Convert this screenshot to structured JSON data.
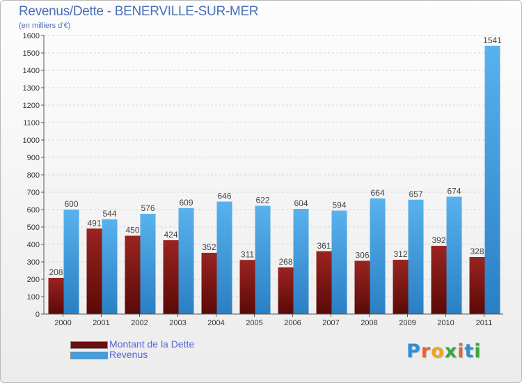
{
  "header": {
    "title": "Revenus/Dette - BENERVILLE-SUR-MER",
    "subtitle": "(en milliers d'€)"
  },
  "chart_data": {
    "type": "bar",
    "categories": [
      "2000",
      "2001",
      "2002",
      "2003",
      "2004",
      "2005",
      "2006",
      "2007",
      "2008",
      "2009",
      "2010",
      "2011"
    ],
    "series": [
      {
        "name": "Montant de la Dette",
        "color": "#7d1512",
        "values": [
          208,
          491,
          450,
          424,
          352,
          311,
          268,
          361,
          306,
          312,
          392,
          328
        ]
      },
      {
        "name": "Revenus",
        "color": "#3f9fdf",
        "values": [
          600,
          544,
          576,
          609,
          646,
          622,
          604,
          594,
          664,
          657,
          674,
          1541
        ]
      }
    ],
    "ylim": [
      0,
      1600
    ],
    "yticks": [
      0,
      100,
      200,
      300,
      400,
      500,
      600,
      700,
      800,
      900,
      1000,
      1100,
      1200,
      1300,
      1400,
      1500,
      1600
    ],
    "grid": true,
    "legend_position": "bottom-left"
  },
  "legend": {
    "items": [
      {
        "label": "Montant de la Dette",
        "color": "#6b0f0d"
      },
      {
        "label": "Revenus",
        "color": "#3f9fdf"
      }
    ]
  },
  "logo": {
    "letters": [
      {
        "ch": "P",
        "color": "#2b8fd6"
      },
      {
        "ch": "r",
        "color": "#e8622a"
      },
      {
        "ch": "o",
        "color": "#f2a41c"
      },
      {
        "ch": "x",
        "color": "#3aa63a"
      },
      {
        "ch": "i",
        "color": "#e8622a"
      },
      {
        "ch": "t",
        "color": "#2b8fd6"
      },
      {
        "ch": "i",
        "color": "#3aa63a"
      }
    ]
  }
}
